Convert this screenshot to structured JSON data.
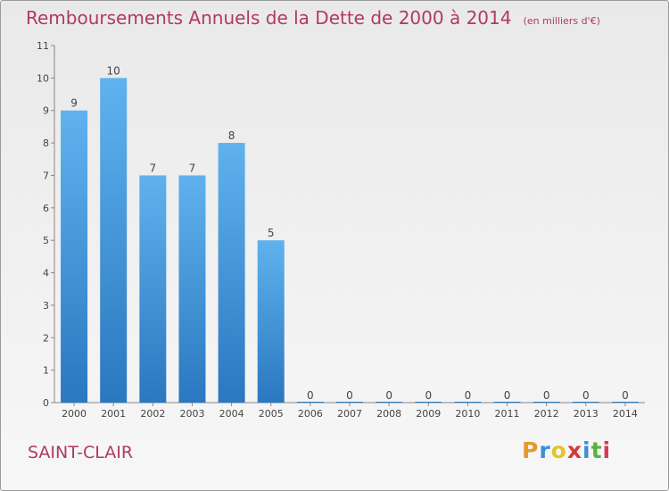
{
  "chart_data": {
    "type": "bar",
    "title": "Remboursements Annuels de la Dette de 2000 à 2014",
    "subtitle": "(en milliers d'€)",
    "categories": [
      "2000",
      "2001",
      "2002",
      "2003",
      "2004",
      "2005",
      "2006",
      "2007",
      "2008",
      "2009",
      "2010",
      "2011",
      "2012",
      "2013",
      "2014"
    ],
    "values": [
      9,
      10,
      7,
      7,
      8,
      5,
      0,
      0,
      0,
      0,
      0,
      0,
      0,
      0,
      0
    ],
    "ylim": [
      0,
      11
    ],
    "yticks": [
      0,
      1,
      2,
      3,
      4,
      5,
      6,
      7,
      8,
      9,
      10,
      11
    ],
    "grid": false,
    "bar_color": "#4a9fe0",
    "title_color": "#b03a62"
  },
  "place": "SAINT-CLAIR",
  "logo": {
    "letters": [
      "P",
      "r",
      "o",
      "x",
      "i",
      "t",
      "i"
    ],
    "colors": [
      "#e39a2c",
      "#3c8fd6",
      "#e3c42c",
      "#d23c3c",
      "#3c8fd6",
      "#5bb13c",
      "#d23c5a"
    ]
  }
}
